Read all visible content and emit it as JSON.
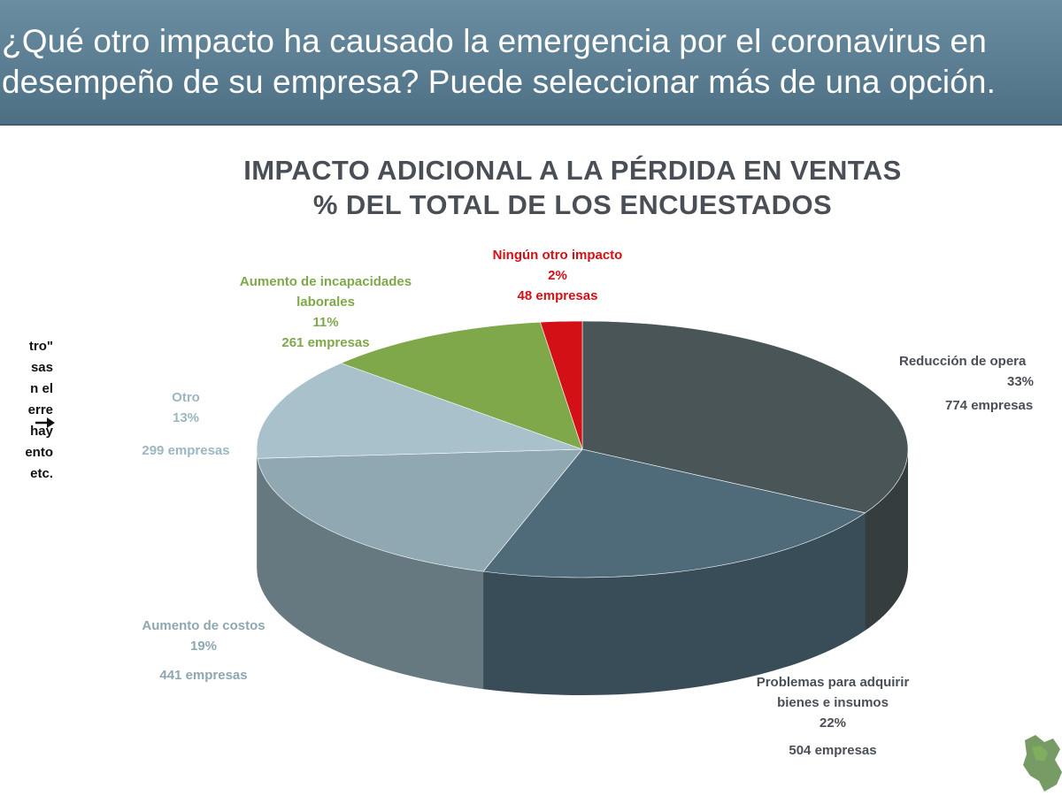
{
  "header": {
    "question_line1": "¿Qué otro impacto ha causado la emergencia por el coronavirus en",
    "question_line2": "desempeño de su empresa? Puede seleccionar más de una opción."
  },
  "left_note": {
    "lines": [
      "tro\"",
      "",
      "sas",
      "",
      "n el",
      "erre",
      "hay",
      "ento",
      "etc."
    ]
  },
  "chart_data": {
    "type": "pie",
    "title": "IMPACTO ADICIONAL A LA PÉRDIDA EN VENTAS",
    "subtitle": "% DEL TOTAL DE LOS ENCUESTADOS",
    "slices": [
      {
        "label_lines": [
          "Reducción de opera"
        ],
        "percent_label": "33%",
        "count_label": "774 empresas",
        "value": 774,
        "color": "#4a5558"
      },
      {
        "label_lines": [
          "Problemas para adquirir",
          "bienes e insumos"
        ],
        "percent_label": "22%",
        "count_label": "504 empresas",
        "value": 504,
        "color": "#4f6b7a"
      },
      {
        "label_lines": [
          "Aumento de costos"
        ],
        "percent_label": "19%",
        "count_label": "441 empresas",
        "value": 441,
        "color": "#8fa8b2"
      },
      {
        "label_lines": [
          "Otro"
        ],
        "percent_label": "13%",
        "count_label": "299 empresas",
        "value": 299,
        "color": "#a8c1ca"
      },
      {
        "label_lines": [
          "Aumento de incapacidades",
          "laborales"
        ],
        "percent_label": "11%",
        "count_label": "261 empresas",
        "value": 261,
        "color": "#7ea84a"
      },
      {
        "label_lines": [
          "Ningún otro impacto"
        ],
        "percent_label": "2%",
        "count_label": "48 empresas",
        "value": 48,
        "color": "#d21015"
      }
    ],
    "label_colors": [
      "#4a4f57",
      "#4a4f57",
      "#8ea7b1",
      "#9ab7c2",
      "#7ea84a",
      "#d21015"
    ]
  }
}
